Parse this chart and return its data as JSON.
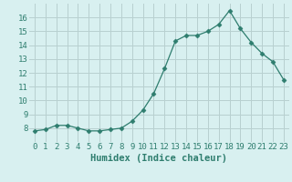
{
  "x": [
    0,
    1,
    2,
    3,
    4,
    5,
    6,
    7,
    8,
    9,
    10,
    11,
    12,
    13,
    14,
    15,
    16,
    17,
    18,
    19,
    20,
    21,
    22,
    23
  ],
  "y": [
    7.8,
    7.9,
    8.2,
    8.2,
    8.0,
    7.8,
    7.8,
    7.9,
    8.0,
    8.5,
    9.3,
    10.5,
    12.3,
    14.3,
    14.7,
    14.7,
    15.0,
    15.5,
    16.5,
    15.2,
    14.2,
    13.4,
    12.8,
    11.5
  ],
  "xlabel": "Humidex (Indice chaleur)",
  "line_color": "#2e7d6e",
  "marker": "D",
  "marker_size": 2.5,
  "bg_color": "#d8f0f0",
  "grid_color": "#b8d0d0",
  "xlim_min": -0.5,
  "xlim_max": 23.5,
  "ylim_min": 7.0,
  "ylim_max": 17.0,
  "yticks": [
    8,
    9,
    10,
    11,
    12,
    13,
    14,
    15,
    16
  ],
  "xticks": [
    0,
    1,
    2,
    3,
    4,
    5,
    6,
    7,
    8,
    9,
    10,
    11,
    12,
    13,
    14,
    15,
    16,
    17,
    18,
    19,
    20,
    21,
    22,
    23
  ],
  "tick_label_fontsize": 6.5,
  "xlabel_fontsize": 7.5
}
